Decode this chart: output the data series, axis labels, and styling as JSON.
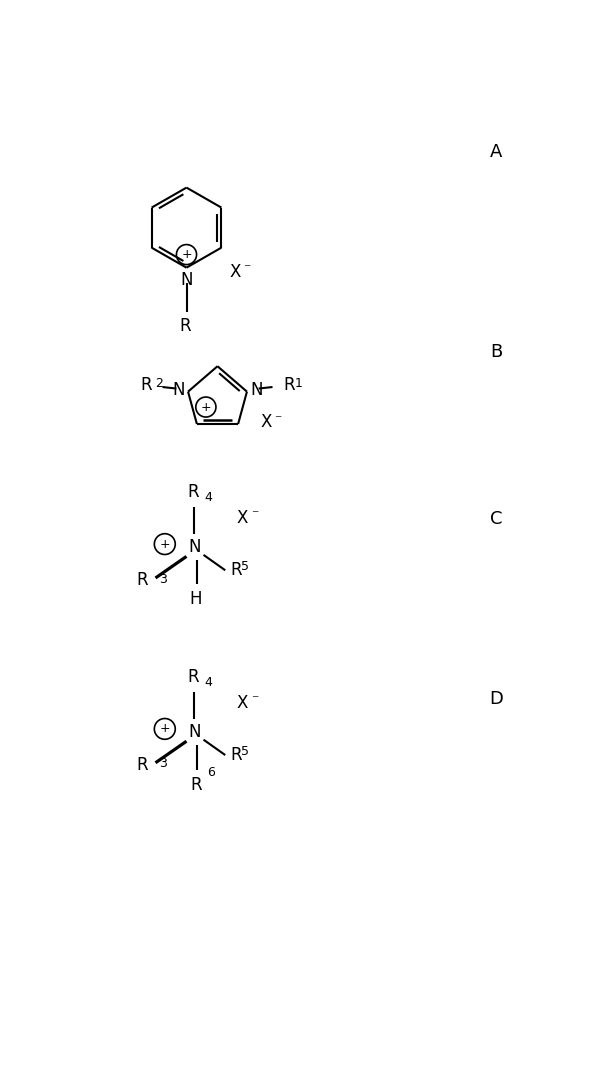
{
  "bg_color": "#ffffff",
  "line_color": "#000000",
  "line_width": 1.5,
  "label_A": "A",
  "label_B": "B",
  "label_C": "C",
  "label_D": "D",
  "label_fontsize": 13,
  "chem_fontsize": 12,
  "sub_fontsize": 9,
  "figw": 5.93,
  "figh": 10.82,
  "dpi": 100
}
